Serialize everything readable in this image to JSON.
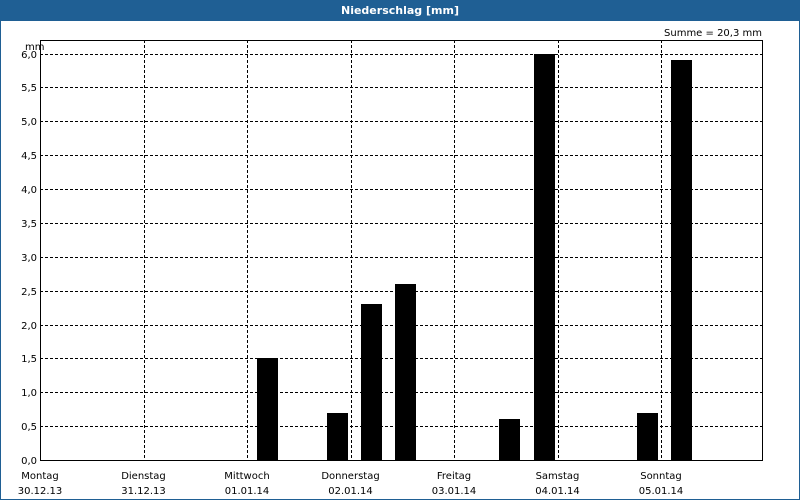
{
  "window": {
    "title": "Niederschlag [mm]"
  },
  "summary": "Summe = 20,3 mm",
  "colors": {
    "titlebar": "#1f5f94",
    "bar": "#000000",
    "grid": "#000000"
  },
  "chart_data": {
    "type": "bar",
    "title": "Niederschlag [mm]",
    "ylabel": "mm",
    "xlabel": "",
    "ylim": [
      0,
      6.2
    ],
    "yticks": [
      "0,0",
      "0,5",
      "1,0",
      "1,5",
      "2,0",
      "2,5",
      "3,0",
      "3,5",
      "4,0",
      "4,5",
      "5,0",
      "5,5",
      "6,0"
    ],
    "days": [
      {
        "weekday": "Montag",
        "date": "30.12.13"
      },
      {
        "weekday": "Dienstag",
        "date": "31.12.13"
      },
      {
        "weekday": "Mittwoch",
        "date": "01.01.14"
      },
      {
        "weekday": "Donnerstag",
        "date": "02.01.14"
      },
      {
        "weekday": "Freitag",
        "date": "03.01.14"
      },
      {
        "weekday": "Samstag",
        "date": "04.01.14"
      },
      {
        "weekday": "Sonntag",
        "date": "05.01.14"
      }
    ],
    "grid": true,
    "bars": [
      {
        "day_offset": 2.1,
        "value": 1.5
      },
      {
        "day_offset": 2.77,
        "value": 0.7
      },
      {
        "day_offset": 3.1,
        "value": 2.3
      },
      {
        "day_offset": 3.43,
        "value": 2.6
      },
      {
        "day_offset": 4.43,
        "value": 0.6
      },
      {
        "day_offset": 4.77,
        "value": 6.0
      },
      {
        "day_offset": 5.77,
        "value": 0.7
      },
      {
        "day_offset": 6.1,
        "value": 5.9
      }
    ],
    "summary": "Summe = 20,3 mm"
  }
}
